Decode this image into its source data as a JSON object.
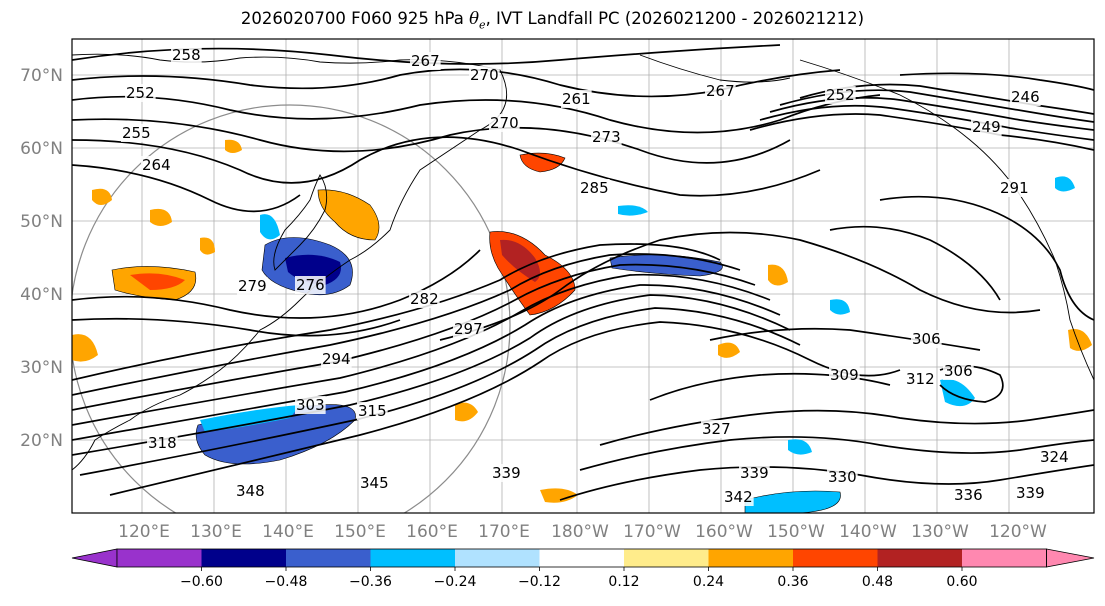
{
  "title": {
    "prefix": "2026020700 F060 925 hPa ",
    "symbol": "θ",
    "symbol_sub": "e",
    "suffix": ", IVT Landfall PC (2026021200 - 2026021212)"
  },
  "lat_ticks": [
    "70°N",
    "60°N",
    "50°N",
    "40°N",
    "30°N",
    "20°N"
  ],
  "lon_ticks": [
    "120°E",
    "130°E",
    "140°E",
    "150°E",
    "160°E",
    "170°E",
    "180°W",
    "170°W",
    "160°W",
    "150°W",
    "140°W",
    "130°W",
    "120°W"
  ],
  "colorbar": {
    "colors": [
      "#9932cc",
      "#00008b",
      "#3a5fcd",
      "#00bfff",
      "#b0e2ff",
      "#ffffff",
      "#ffec8b",
      "#ffa500",
      "#ff4500",
      "#b22222",
      "#ff88b0"
    ],
    "extend_min_color": "#9932cc",
    "extend_max_color": "#ff88b0",
    "tick_labels": [
      "−0.60",
      "−0.48",
      "−0.36",
      "−0.24",
      "−0.12",
      "0.12",
      "0.24",
      "0.36",
      "0.48",
      "0.60"
    ]
  },
  "contour_labels": [
    "258",
    "267",
    "270",
    "252",
    "261",
    "267",
    "252",
    "246",
    "255",
    "270",
    "273",
    "249",
    "264",
    "285",
    "291",
    "279",
    "276",
    "282",
    "297",
    "294",
    "309",
    "306",
    "312",
    "306",
    "303",
    "315",
    "318",
    "327",
    "324",
    "339",
    "339",
    "330",
    "342",
    "336",
    "339",
    "345",
    "348"
  ]
}
